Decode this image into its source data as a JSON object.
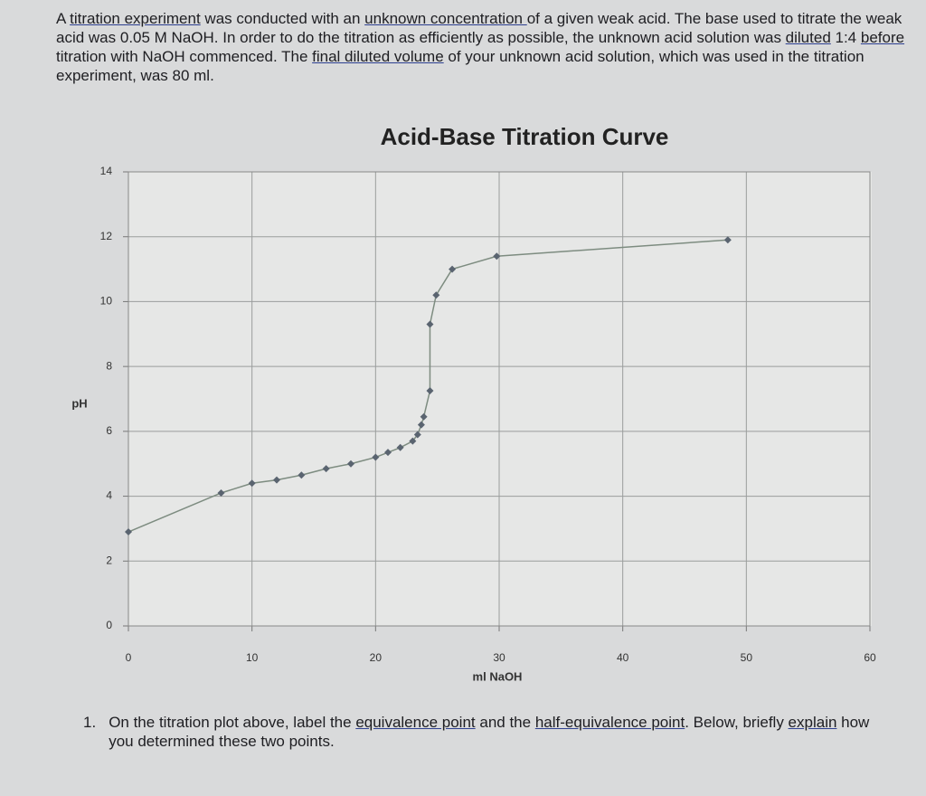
{
  "intro": [
    {
      "text": "A ",
      "underline": false
    },
    {
      "text": "titration experiment",
      "underline": true
    },
    {
      "text": " was conducted with an ",
      "underline": false
    },
    {
      "text": "unknown concentration ",
      "underline": true
    },
    {
      "text": "of a given weak acid. The base used to titrate the weak acid was 0.05 M NaOH. In order to do the titration as efficiently as possible, the unknown acid solution was ",
      "underline": false
    },
    {
      "text": "diluted",
      "underline": true
    },
    {
      "text": " 1:4 ",
      "underline": false
    },
    {
      "text": "before",
      "underline": true
    },
    {
      "text": " titration with NaOH commenced. The ",
      "underline": false
    },
    {
      "text": "final diluted volume",
      "underline": true
    },
    {
      "text": " of your unknown acid solution, which was used in the titration experiment, was 80 ml.",
      "underline": false
    }
  ],
  "question": {
    "number": "1.",
    "parts": [
      {
        "text": "On the titration plot above, label the ",
        "underline": false
      },
      {
        "text": "equivalence point",
        "underline": true
      },
      {
        "text": " and the ",
        "underline": false
      },
      {
        "text": "half-equivalence point",
        "underline": true
      },
      {
        "text": ". Below, briefly ",
        "underline": false
      },
      {
        "text": "explain",
        "underline": true
      },
      {
        "text": " how you determined these two points.",
        "underline": false
      }
    ]
  },
  "chart_data": {
    "type": "line",
    "title": "Acid-Base Titration Curve",
    "x_label": "ml NaOH",
    "y_label": "pH",
    "x": [
      0,
      7.5,
      10,
      12,
      14,
      16,
      18,
      20,
      21,
      22,
      23,
      23.4,
      23.7,
      23.9,
      24.4,
      24.4,
      24.9,
      26.2,
      29.8,
      48.5
    ],
    "series": [
      {
        "name": "pH",
        "color": "#7d8c80",
        "values": [
          2.9,
          4.1,
          4.4,
          4.5,
          4.65,
          4.85,
          5.0,
          5.2,
          5.35,
          5.5,
          5.7,
          5.9,
          6.2,
          6.45,
          7.25,
          9.3,
          10.2,
          11.0,
          11.4,
          11.9
        ]
      }
    ],
    "marker_color": "#5a6470",
    "xlim": [
      0,
      60
    ],
    "xticks": [
      0,
      10,
      20,
      30,
      40,
      50,
      60
    ],
    "ylim": [
      0,
      14
    ],
    "yticks": [
      0,
      2,
      4,
      6,
      8,
      10,
      12,
      14
    ],
    "grid": true
  }
}
